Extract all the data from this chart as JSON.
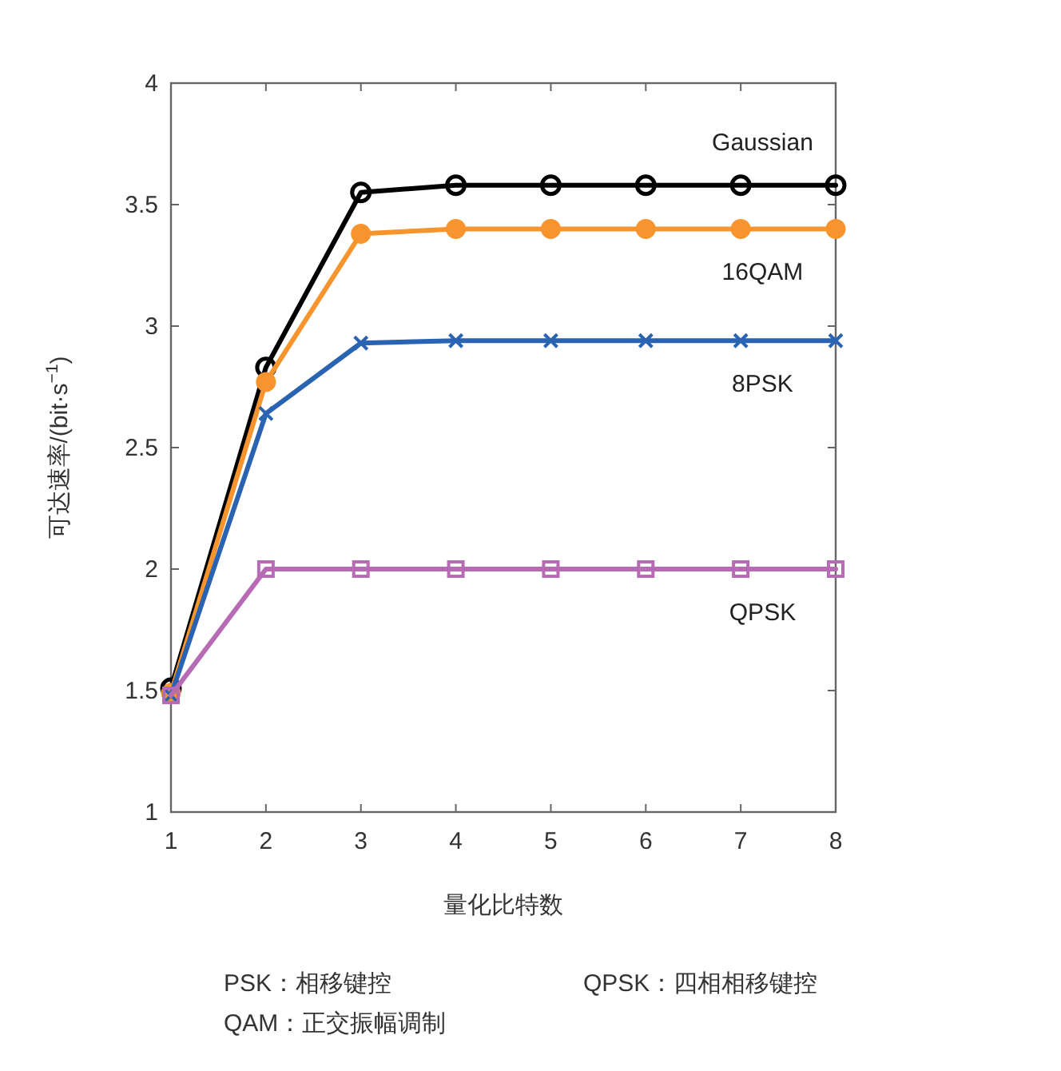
{
  "chart_data": {
    "type": "line",
    "xlabel": "量化比特数",
    "ylabel": "可达速率/(bit·s$^{−1}$)",
    "x": [
      1,
      2,
      3,
      4,
      5,
      6,
      7,
      8
    ],
    "series": [
      {
        "name": "Gaussian",
        "color": "#000000",
        "marker": "circle",
        "values": [
          1.51,
          2.83,
          3.55,
          3.58,
          3.58,
          3.58,
          3.58,
          3.58
        ]
      },
      {
        "name": "16QAM",
        "color": "#f7942d",
        "marker": "circle",
        "values": [
          1.49,
          2.77,
          3.38,
          3.4,
          3.4,
          3.4,
          3.4,
          3.4
        ]
      },
      {
        "name": "8PSK",
        "color": "#2a63b2",
        "marker": "cross",
        "values": [
          1.48,
          2.64,
          2.93,
          2.94,
          2.94,
          2.94,
          2.94,
          2.94
        ]
      },
      {
        "name": "QPSK",
        "color": "#b86bb5",
        "marker": "square",
        "values": [
          1.48,
          2.0,
          2.0,
          2.0,
          2.0,
          2.0,
          2.0,
          2.0
        ]
      }
    ],
    "xlim": [
      1,
      8
    ],
    "xticks": [
      1,
      2,
      3,
      4,
      5,
      6,
      7,
      8
    ],
    "ylim": [
      1,
      4
    ],
    "yticks": [
      1,
      1.5,
      2,
      2.5,
      3,
      3.5,
      4
    ],
    "grid": false,
    "line_style": "solid",
    "annotations": [
      "PSK：相移键控",
      "QPSK：四相相移键控",
      "QAM：正交振幅调制"
    ]
  }
}
